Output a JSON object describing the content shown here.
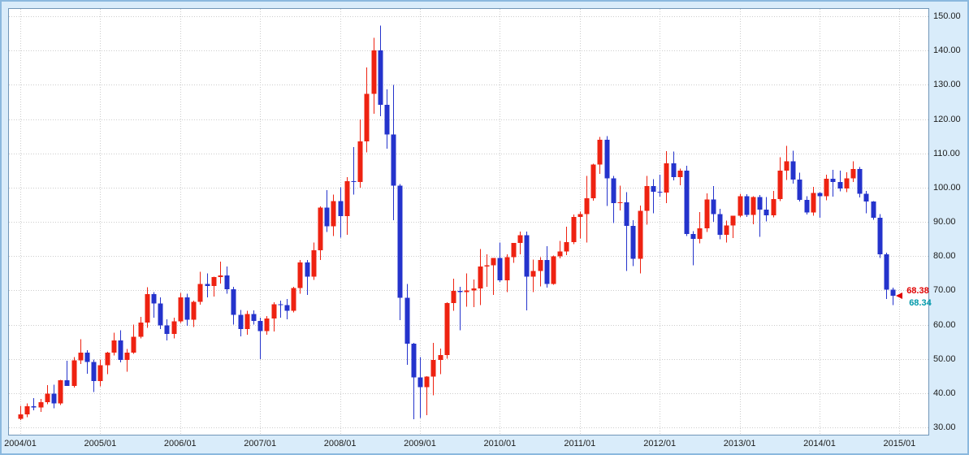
{
  "chart_data": {
    "type": "candlestick",
    "timeframe": "monthly",
    "grid": true,
    "legend": "none",
    "up_color": "#ee2211",
    "down_color": "#2433cc",
    "grid_color": "#cccccc",
    "ylim": [
      28,
      152
    ],
    "y_ticks": [
      150,
      140,
      130,
      120,
      110,
      100,
      90,
      80,
      70,
      60,
      50,
      40,
      30
    ],
    "y_tick_labels": [
      "150.00",
      "140.00",
      "130.00",
      "120.00",
      "110.00",
      "100.00",
      "90.00",
      "80.00",
      "70.00",
      "60.00",
      "50.00",
      "40.00",
      "30.00"
    ],
    "x_tick_labels": [
      "2004/01",
      "2005/01",
      "2006/01",
      "2007/01",
      "2008/01",
      "2009/01",
      "2010/01",
      "2011/01",
      "2012/01",
      "2013/01",
      "2014/01",
      "2015/01"
    ],
    "marker_price": 68.38,
    "price_labels": [
      {
        "text": "68.38",
        "color": "#e00000"
      },
      {
        "text": "68.34",
        "color": "#0099aa"
      }
    ],
    "ohlc_format": [
      "month",
      "open",
      "high",
      "low",
      "close"
    ],
    "candles": [
      [
        "2004/01",
        32.5,
        36.3,
        32.1,
        33.8
      ],
      [
        "2004/02",
        33.8,
        37.0,
        33.0,
        36.2
      ],
      [
        "2004/03",
        36.2,
        38.5,
        35.0,
        35.8
      ],
      [
        "2004/04",
        35.8,
        38.3,
        34.5,
        37.3
      ],
      [
        "2004/05",
        37.3,
        42.3,
        36.8,
        39.9
      ],
      [
        "2004/06",
        39.9,
        42.4,
        35.6,
        37.0
      ],
      [
        "2004/07",
        37.0,
        43.9,
        36.5,
        43.8
      ],
      [
        "2004/08",
        43.8,
        49.4,
        42.5,
        42.1
      ],
      [
        "2004/09",
        42.1,
        50.5,
        41.6,
        49.6
      ],
      [
        "2004/10",
        49.6,
        55.7,
        48.5,
        51.8
      ],
      [
        "2004/11",
        51.8,
        52.5,
        45.7,
        49.1
      ],
      [
        "2004/12",
        49.1,
        49.8,
        40.3,
        43.5
      ],
      [
        "2005/01",
        43.5,
        49.8,
        42.0,
        48.2
      ],
      [
        "2005/02",
        48.2,
        52.0,
        45.5,
        51.8
      ],
      [
        "2005/03",
        51.8,
        57.6,
        51.0,
        55.4
      ],
      [
        "2005/04",
        55.4,
        58.3,
        49.0,
        49.7
      ],
      [
        "2005/05",
        49.7,
        52.9,
        46.2,
        51.8
      ],
      [
        "2005/06",
        51.8,
        60.0,
        51.5,
        56.5
      ],
      [
        "2005/07",
        56.5,
        62.3,
        56.0,
        60.6
      ],
      [
        "2005/08",
        60.6,
        70.9,
        59.0,
        68.9
      ],
      [
        "2005/09",
        68.9,
        69.5,
        62.0,
        66.2
      ],
      [
        "2005/10",
        66.2,
        68.0,
        58.7,
        59.8
      ],
      [
        "2005/11",
        59.8,
        61.5,
        55.4,
        57.3
      ],
      [
        "2005/12",
        57.3,
        62.0,
        56.0,
        61.0
      ],
      [
        "2006/01",
        61.0,
        69.2,
        60.5,
        67.9
      ],
      [
        "2006/02",
        67.9,
        69.0,
        59.6,
        61.4
      ],
      [
        "2006/03",
        61.4,
        67.0,
        59.3,
        66.6
      ],
      [
        "2006/04",
        66.6,
        75.4,
        65.8,
        71.9
      ],
      [
        "2006/05",
        71.9,
        75.0,
        68.0,
        71.3
      ],
      [
        "2006/06",
        71.3,
        74.0,
        68.2,
        73.9
      ],
      [
        "2006/07",
        73.9,
        78.4,
        72.0,
        74.4
      ],
      [
        "2006/08",
        74.4,
        77.0,
        69.0,
        70.3
      ],
      [
        "2006/09",
        70.3,
        71.0,
        60.0,
        62.9
      ],
      [
        "2006/10",
        62.9,
        64.3,
        56.6,
        58.7
      ],
      [
        "2006/11",
        58.7,
        64.0,
        57.0,
        63.1
      ],
      [
        "2006/12",
        63.1,
        64.2,
        60.0,
        61.1
      ],
      [
        "2007/01",
        61.1,
        62.0,
        49.9,
        58.1
      ],
      [
        "2007/02",
        58.1,
        62.5,
        57.0,
        61.8
      ],
      [
        "2007/03",
        61.8,
        66.5,
        58.0,
        65.9
      ],
      [
        "2007/04",
        65.9,
        67.0,
        62.0,
        65.7
      ],
      [
        "2007/05",
        65.7,
        67.5,
        61.5,
        64.0
      ],
      [
        "2007/06",
        64.0,
        71.0,
        63.6,
        70.7
      ],
      [
        "2007/07",
        70.7,
        78.8,
        69.0,
        78.2
      ],
      [
        "2007/08",
        78.2,
        78.9,
        68.6,
        74.0
      ],
      [
        "2007/09",
        74.0,
        83.9,
        73.0,
        81.7
      ],
      [
        "2007/10",
        81.7,
        94.5,
        78.9,
        94.2
      ],
      [
        "2007/11",
        94.2,
        99.3,
        87.0,
        88.7
      ],
      [
        "2007/12",
        88.7,
        98.0,
        85.8,
        96.0
      ],
      [
        "2008/01",
        96.0,
        100.1,
        85.4,
        91.7
      ],
      [
        "2008/02",
        91.7,
        103.0,
        86.2,
        101.8
      ],
      [
        "2008/03",
        101.8,
        111.8,
        98.0,
        101.6
      ],
      [
        "2008/04",
        101.6,
        119.9,
        100.0,
        113.5
      ],
      [
        "2008/05",
        113.5,
        135.1,
        110.3,
        127.4
      ],
      [
        "2008/06",
        127.4,
        143.7,
        121.6,
        140.0
      ],
      [
        "2008/07",
        140.0,
        147.3,
        120.8,
        124.1
      ],
      [
        "2008/08",
        124.1,
        128.6,
        111.3,
        115.5
      ],
      [
        "2008/09",
        115.5,
        130.0,
        90.5,
        100.6
      ],
      [
        "2008/10",
        100.6,
        101.0,
        61.3,
        67.8
      ],
      [
        "2008/11",
        67.8,
        71.8,
        48.3,
        54.4
      ],
      [
        "2008/12",
        54.4,
        54.7,
        32.4,
        44.6
      ],
      [
        "2009/01",
        44.6,
        50.5,
        32.7,
        41.7
      ],
      [
        "2009/02",
        41.7,
        45.0,
        33.6,
        44.8
      ],
      [
        "2009/03",
        44.8,
        54.7,
        39.4,
        49.7
      ],
      [
        "2009/04",
        49.7,
        53.0,
        45.5,
        51.1
      ],
      [
        "2009/05",
        51.1,
        66.5,
        50.0,
        66.3
      ],
      [
        "2009/06",
        66.3,
        73.4,
        64.0,
        69.9
      ],
      [
        "2009/07",
        69.9,
        71.0,
        58.3,
        69.5
      ],
      [
        "2009/08",
        69.5,
        75.0,
        65.2,
        70.0
      ],
      [
        "2009/09",
        70.0,
        73.2,
        65.1,
        70.6
      ],
      [
        "2009/10",
        70.6,
        82.0,
        65.7,
        77.0
      ],
      [
        "2009/11",
        77.0,
        80.5,
        71.0,
        77.3
      ],
      [
        "2009/12",
        77.3,
        79.0,
        68.6,
        79.4
      ],
      [
        "2010/01",
        79.4,
        84.0,
        72.4,
        72.9
      ],
      [
        "2010/02",
        72.9,
        80.5,
        69.5,
        79.7
      ],
      [
        "2010/03",
        79.7,
        83.8,
        78.0,
        83.8
      ],
      [
        "2010/04",
        83.8,
        87.1,
        80.5,
        86.1
      ],
      [
        "2010/05",
        86.1,
        87.2,
        64.2,
        74.0
      ],
      [
        "2010/06",
        74.0,
        79.0,
        69.5,
        75.6
      ],
      [
        "2010/07",
        75.6,
        79.7,
        71.1,
        78.9
      ],
      [
        "2010/08",
        78.9,
        82.9,
        70.8,
        71.9
      ],
      [
        "2010/09",
        71.9,
        80.2,
        71.6,
        79.9
      ],
      [
        "2010/10",
        79.9,
        84.4,
        79.3,
        81.4
      ],
      [
        "2010/11",
        81.4,
        88.6,
        80.3,
        84.1
      ],
      [
        "2010/12",
        84.1,
        92.1,
        83.5,
        91.4
      ],
      [
        "2011/01",
        91.4,
        93.0,
        85.1,
        92.2
      ],
      [
        "2011/02",
        92.2,
        103.4,
        83.9,
        96.9
      ],
      [
        "2011/03",
        96.9,
        106.9,
        96.2,
        106.7
      ],
      [
        "2011/04",
        106.7,
        114.8,
        104.0,
        113.9
      ],
      [
        "2011/05",
        113.9,
        115.0,
        94.6,
        102.7
      ],
      [
        "2011/06",
        102.7,
        103.4,
        89.6,
        95.4
      ],
      [
        "2011/07",
        95.4,
        100.6,
        93.3,
        95.7
      ],
      [
        "2011/08",
        95.7,
        98.6,
        75.7,
        88.8
      ],
      [
        "2011/09",
        88.8,
        90.5,
        77.1,
        79.2
      ],
      [
        "2011/10",
        79.2,
        94.7,
        75.0,
        93.2
      ],
      [
        "2011/11",
        93.2,
        103.4,
        89.2,
        100.4
      ],
      [
        "2011/12",
        100.4,
        102.4,
        92.5,
        98.8
      ],
      [
        "2012/01",
        98.8,
        103.7,
        97.4,
        98.5
      ],
      [
        "2012/02",
        98.5,
        110.6,
        95.4,
        107.1
      ],
      [
        "2012/03",
        107.1,
        110.5,
        102.1,
        103.0
      ],
      [
        "2012/04",
        103.0,
        105.5,
        100.7,
        104.9
      ],
      [
        "2012/05",
        104.9,
        106.4,
        85.9,
        86.5
      ],
      [
        "2012/06",
        86.5,
        87.3,
        77.3,
        85.0
      ],
      [
        "2012/07",
        85.0,
        92.9,
        83.7,
        88.1
      ],
      [
        "2012/08",
        88.1,
        98.3,
        87.0,
        96.5
      ],
      [
        "2012/09",
        96.5,
        100.4,
        90.0,
        92.2
      ],
      [
        "2012/10",
        92.2,
        93.8,
        84.9,
        86.2
      ],
      [
        "2012/11",
        86.2,
        90.3,
        84.0,
        88.9
      ],
      [
        "2012/12",
        88.9,
        91.5,
        85.2,
        91.8
      ],
      [
        "2013/01",
        91.8,
        98.2,
        91.3,
        97.5
      ],
      [
        "2013/02",
        97.5,
        98.1,
        91.4,
        92.0
      ],
      [
        "2013/03",
        92.0,
        97.5,
        89.3,
        97.2
      ],
      [
        "2013/04",
        97.2,
        97.8,
        85.6,
        93.5
      ],
      [
        "2013/05",
        93.5,
        97.2,
        90.1,
        91.9
      ],
      [
        "2013/06",
        91.9,
        99.0,
        91.3,
        96.6
      ],
      [
        "2013/07",
        96.6,
        108.9,
        96.1,
        105.0
      ],
      [
        "2013/08",
        105.0,
        112.2,
        102.2,
        107.7
      ],
      [
        "2013/09",
        107.7,
        110.7,
        101.1,
        102.3
      ],
      [
        "2013/10",
        102.3,
        104.4,
        95.9,
        96.4
      ],
      [
        "2013/11",
        96.4,
        97.5,
        92.1,
        92.7
      ],
      [
        "2013/12",
        92.7,
        100.2,
        91.8,
        98.4
      ],
      [
        "2014/01",
        98.4,
        98.6,
        91.2,
        97.5
      ],
      [
        "2014/02",
        97.5,
        103.8,
        96.3,
        102.6
      ],
      [
        "2014/03",
        102.6,
        105.2,
        97.4,
        101.6
      ],
      [
        "2014/04",
        101.6,
        105.0,
        98.9,
        99.7
      ],
      [
        "2014/05",
        99.7,
        104.5,
        98.7,
        102.7
      ],
      [
        "2014/06",
        102.7,
        107.7,
        101.6,
        105.4
      ],
      [
        "2014/07",
        105.4,
        106.0,
        97.1,
        98.2
      ],
      [
        "2014/08",
        98.2,
        99.0,
        92.5,
        95.9
      ],
      [
        "2014/09",
        95.9,
        96.0,
        90.6,
        91.2
      ],
      [
        "2014/10",
        91.2,
        92.2,
        79.4,
        80.5
      ],
      [
        "2014/11",
        80.5,
        81.0,
        67.5,
        70.2
      ],
      [
        "2014/12",
        70.2,
        70.8,
        65.7,
        68.38
      ]
    ]
  }
}
